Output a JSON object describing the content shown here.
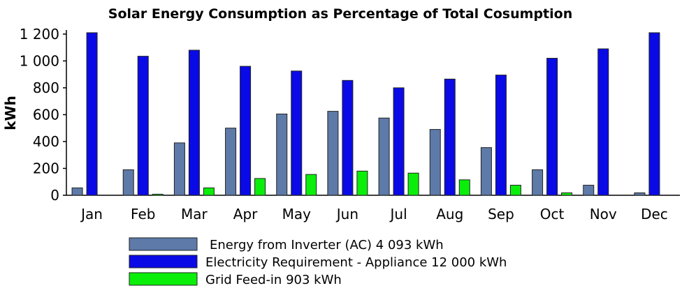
{
  "chart_data": {
    "type": "bar",
    "title": "Solar Energy Consumption as Percentage of Total Cosumption",
    "xlabel": "",
    "ylabel": "kWh",
    "ylim": [
      0,
      1220
    ],
    "yticks": [
      0,
      200,
      400,
      600,
      800,
      1000,
      1200
    ],
    "ytick_labels": [
      "0",
      "200",
      "400",
      "600",
      "800",
      "1 000",
      "1 200"
    ],
    "grid": false,
    "legend_position": "bottom",
    "categories": [
      "Jan",
      "Feb",
      "Mar",
      "Apr",
      "May",
      "Jun",
      "Jul",
      "Aug",
      "Sep",
      "Oct",
      "Nov",
      "Dec"
    ],
    "series": [
      {
        "name": "Energy from Inverter (AC) 4 093 kWh",
        "color": "#5d7aa8",
        "values": [
          55,
          190,
          390,
          500,
          605,
          625,
          575,
          490,
          355,
          190,
          75,
          18
        ]
      },
      {
        "name": "Electricity Requirement - Appliance 12 000 kWh",
        "color": "#0a0ae6",
        "values": [
          1210,
          1035,
          1080,
          960,
          925,
          855,
          800,
          865,
          895,
          1020,
          1090,
          1210
        ]
      },
      {
        "name": "Grid Feed-in 903 kWh",
        "color": "#0aef0a",
        "values": [
          0,
          8,
          55,
          125,
          155,
          180,
          165,
          115,
          75,
          18,
          0,
          0
        ]
      }
    ]
  }
}
